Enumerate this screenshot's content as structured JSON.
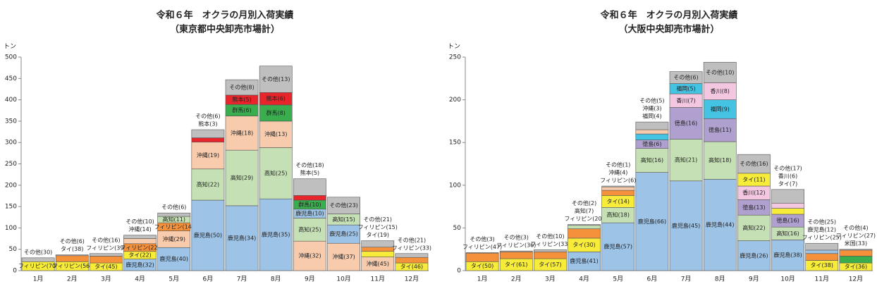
{
  "chart_data": [
    {
      "type": "bar",
      "stacked": true,
      "title": "令和６年　オクラの月別入荷実績",
      "subtitle": "（東京都中央卸売市場計）",
      "y_label": "トン",
      "categories": [
        "1月",
        "2月",
        "3月",
        "4月",
        "5月",
        "6月",
        "7月",
        "8月",
        "9月",
        "10月",
        "11月",
        "12月"
      ],
      "ylim": [
        0,
        500
      ],
      "yticks": [
        0,
        50,
        100,
        150,
        200,
        250,
        300,
        350,
        400,
        450,
        500
      ],
      "stacks": [
        [
          {
            "label": "フィリピン(70)",
            "value": 21,
            "color": "#f7ec3a"
          },
          {
            "label": "その他(30)",
            "value": 9,
            "color": "#bfbfbf",
            "outside": true
          }
        ],
        [
          {
            "label": "フィリピン(56)",
            "value": 21,
            "color": "#f7ec3a"
          },
          {
            "label": "タイ(38)",
            "value": 14,
            "color": "#f4913a",
            "outside": true
          },
          {
            "label": "その他(6)",
            "value": 2,
            "color": "#bfbfbf",
            "outside": true
          }
        ],
        [
          {
            "label": "タイ(45)",
            "value": 18,
            "color": "#f7ec3a"
          },
          {
            "label": "フィリピン(39)",
            "value": 16,
            "color": "#f4913a",
            "outside": true
          },
          {
            "label": "その他(16)",
            "value": 6,
            "color": "#bfbfbf",
            "outside": true
          }
        ],
        [
          {
            "label": "鹿児島(32)",
            "value": 27,
            "color": "#9dc3e6"
          },
          {
            "label": "タイ(22)",
            "value": 18,
            "color": "#f7ec3a"
          },
          {
            "label": "フィリピン(22)",
            "value": 18,
            "color": "#f4913a"
          },
          {
            "label": "沖縄(14)",
            "value": 12,
            "color": "#f8cbad",
            "outside": true
          },
          {
            "label": "その他(10)",
            "value": 8,
            "color": "#bfbfbf",
            "outside": true
          }
        ],
        [
          {
            "label": "鹿児島(40)",
            "value": 54,
            "color": "#9dc3e6"
          },
          {
            "label": "沖縄(29)",
            "value": 39,
            "color": "#f8cbad"
          },
          {
            "label": "フィリピン(14)",
            "value": 19,
            "color": "#f4913a"
          },
          {
            "label": "高知(11)",
            "value": 15,
            "color": "#c5e0b4"
          },
          {
            "label": "その他(6)",
            "value": 8,
            "color": "#bfbfbf",
            "outside": true
          }
        ],
        [
          {
            "label": "鹿児島(50)",
            "value": 165,
            "color": "#9dc3e6"
          },
          {
            "label": "高知(22)",
            "value": 73,
            "color": "#c5e0b4"
          },
          {
            "label": "沖縄(19)",
            "value": 63,
            "color": "#f8cbad"
          },
          {
            "label": "熊本(3)",
            "value": 10,
            "color": "#e8252b",
            "outside": true
          },
          {
            "label": "その他(6)",
            "value": 19,
            "color": "#bfbfbf",
            "outside": true
          }
        ],
        [
          {
            "label": "鹿児島(34)",
            "value": 152,
            "color": "#9dc3e6"
          },
          {
            "label": "高知(29)",
            "value": 130,
            "color": "#c5e0b4"
          },
          {
            "label": "沖縄(18)",
            "value": 80,
            "color": "#f8cbad"
          },
          {
            "label": "群馬(6)",
            "value": 27,
            "color": "#3aae4f"
          },
          {
            "label": "熊本(5)",
            "value": 22,
            "color": "#e8252b"
          },
          {
            "label": "その他(8)",
            "value": 36,
            "color": "#bfbfbf"
          }
        ],
        [
          {
            "label": "鹿児島(35)",
            "value": 168,
            "color": "#9dc3e6"
          },
          {
            "label": "高知(25)",
            "value": 120,
            "color": "#c5e0b4"
          },
          {
            "label": "沖縄(13)",
            "value": 62,
            "color": "#f8cbad"
          },
          {
            "label": "群馬(8)",
            "value": 38,
            "color": "#3aae4f"
          },
          {
            "label": "熊本(6)",
            "value": 29,
            "color": "#e8252b"
          },
          {
            "label": "その他(13)",
            "value": 62,
            "color": "#bfbfbf"
          }
        ],
        [
          {
            "label": "沖縄(32)",
            "value": 69,
            "color": "#f8cbad"
          },
          {
            "label": "高知(25)",
            "value": 54,
            "color": "#c5e0b4"
          },
          {
            "label": "鹿児島(10)",
            "value": 21,
            "color": "#9dc3e6"
          },
          {
            "label": "群馬(10)",
            "value": 21,
            "color": "#3aae4f"
          },
          {
            "label": "熊本(5)",
            "value": 11,
            "color": "#e8252b",
            "outside": true
          },
          {
            "label": "その他(18)",
            "value": 39,
            "color": "#bfbfbf",
            "outside": true
          }
        ],
        [
          {
            "label": "沖縄(37)",
            "value": 64,
            "color": "#f8cbad"
          },
          {
            "label": "鹿児島(25)",
            "value": 43,
            "color": "#9dc3e6"
          },
          {
            "label": "高知(15)",
            "value": 26,
            "color": "#c5e0b4"
          },
          {
            "label": "その他(23)",
            "value": 39,
            "color": "#bfbfbf"
          }
        ],
        [
          {
            "label": "沖縄(45)",
            "value": 32,
            "color": "#f8cbad"
          },
          {
            "label": "タイ(19)",
            "value": 13,
            "color": "#f7ec3a",
            "outside": true
          },
          {
            "label": "フィリピン(15)",
            "value": 10,
            "color": "#f4913a",
            "outside": true
          },
          {
            "label": "その他(21)",
            "value": 15,
            "color": "#bfbfbf",
            "outside": true
          }
        ],
        [
          {
            "label": "タイ(46)",
            "value": 18,
            "color": "#f7ec3a"
          },
          {
            "label": "フィリピン(33)",
            "value": 13,
            "color": "#f4913a",
            "outside": true
          },
          {
            "label": "その他(21)",
            "value": 9,
            "color": "#bfbfbf",
            "outside": true
          }
        ]
      ]
    },
    {
      "type": "bar",
      "stacked": true,
      "title": "令和６年　オクラの月別入荷実績",
      "subtitle": "（大阪中央卸売市場計）",
      "y_label": "トン",
      "categories": [
        "1月",
        "2月",
        "3月",
        "4月",
        "5月",
        "6月",
        "7月",
        "8月",
        "9月",
        "10月",
        "11月",
        "12月"
      ],
      "ylim": [
        0,
        250
      ],
      "yticks": [
        0,
        50,
        100,
        150,
        200,
        250
      ],
      "stacks": [
        [
          {
            "label": "タイ(50)",
            "value": 10.5,
            "color": "#f7ec3a"
          },
          {
            "label": "フィリピン(47)",
            "value": 10,
            "color": "#f4913a",
            "outside": true
          },
          {
            "label": "その他(3)",
            "value": 0.5,
            "color": "#bfbfbf",
            "outside": true
          }
        ],
        [
          {
            "label": "タイ(61)",
            "value": 14,
            "color": "#f7ec3a"
          },
          {
            "label": "フィリピン(36)",
            "value": 8,
            "color": "#f4913a",
            "outside": true
          },
          {
            "label": "その他(3)",
            "value": 1,
            "color": "#bfbfbf",
            "outside": true
          }
        ],
        [
          {
            "label": "タイ(57)",
            "value": 14,
            "color": "#f7ec3a"
          },
          {
            "label": "フィリピン(33)",
            "value": 8,
            "color": "#f4913a",
            "outside": true
          },
          {
            "label": "その他(10)",
            "value": 2.5,
            "color": "#bfbfbf",
            "outside": true
          }
        ],
        [
          {
            "label": "鹿児島(41)",
            "value": 22,
            "color": "#9dc3e6"
          },
          {
            "label": "タイ(30)",
            "value": 16,
            "color": "#f7ec3a"
          },
          {
            "label": "フィリピン(20)",
            "value": 11,
            "color": "#f4913a",
            "outside": true
          },
          {
            "label": "高知(7)",
            "value": 4,
            "color": "#c5e0b4",
            "outside": true
          },
          {
            "label": "その他(2)",
            "value": 1,
            "color": "#bfbfbf",
            "outside": true
          }
        ],
        [
          {
            "label": "鹿児島(57)",
            "value": 56,
            "color": "#9dc3e6"
          },
          {
            "label": "高知(18)",
            "value": 18,
            "color": "#c5e0b4"
          },
          {
            "label": "タイ(14)",
            "value": 14,
            "color": "#f7ec3a"
          },
          {
            "label": "フィリピン(6)",
            "value": 6,
            "color": "#f4913a",
            "outside": true
          },
          {
            "label": "沖縄(4)",
            "value": 4,
            "color": "#f8cbad",
            "outside": true
          },
          {
            "label": "その他(1)",
            "value": 1,
            "color": "#bfbfbf",
            "outside": true
          }
        ],
        [
          {
            "label": "鹿児島(66)",
            "value": 115,
            "color": "#9dc3e6"
          },
          {
            "label": "高知(16)",
            "value": 28,
            "color": "#c5e0b4"
          },
          {
            "label": "徳島(6)",
            "value": 10,
            "color": "#b0a0d0"
          },
          {
            "label": "福岡(4)",
            "value": 7,
            "color": "#45c3e3",
            "outside": true
          },
          {
            "label": "沖縄(3)",
            "value": 5,
            "color": "#f8cbad",
            "outside": true
          },
          {
            "label": "その他(5)",
            "value": 9,
            "color": "#bfbfbf",
            "outside": true
          }
        ],
        [
          {
            "label": "鹿児島(45)",
            "value": 105,
            "color": "#9dc3e6"
          },
          {
            "label": "高知(21)",
            "value": 49,
            "color": "#c5e0b4"
          },
          {
            "label": "徳島(16)",
            "value": 37,
            "color": "#b0a0d0"
          },
          {
            "label": "香川(7)",
            "value": 16,
            "color": "#f4c7e0"
          },
          {
            "label": "福岡(5)",
            "value": 12,
            "color": "#45c3e3"
          },
          {
            "label": "その他(6)",
            "value": 14,
            "color": "#bfbfbf"
          }
        ],
        [
          {
            "label": "鹿児島(44)",
            "value": 107,
            "color": "#9dc3e6"
          },
          {
            "label": "高知(18)",
            "value": 44,
            "color": "#c5e0b4"
          },
          {
            "label": "徳島(11)",
            "value": 27,
            "color": "#b0a0d0"
          },
          {
            "label": "福岡(9)",
            "value": 22,
            "color": "#45c3e3"
          },
          {
            "label": "香川(8)",
            "value": 20,
            "color": "#f4c7e0"
          },
          {
            "label": "その他(10)",
            "value": 24,
            "color": "#bfbfbf"
          }
        ],
        [
          {
            "label": "鹿児島(26)",
            "value": 35,
            "color": "#9dc3e6"
          },
          {
            "label": "高知(22)",
            "value": 30,
            "color": "#c5e0b4"
          },
          {
            "label": "徳島(13)",
            "value": 18,
            "color": "#b0a0d0"
          },
          {
            "label": "香川(12)",
            "value": 16,
            "color": "#f4c7e0"
          },
          {
            "label": "タイ(11)",
            "value": 15,
            "color": "#f7ec3a"
          },
          {
            "label": "その他(16)",
            "value": 22,
            "color": "#bfbfbf"
          }
        ],
        [
          {
            "label": "鹿児島(38)",
            "value": 36,
            "color": "#9dc3e6"
          },
          {
            "label": "高知(16)",
            "value": 15,
            "color": "#c5e0b4"
          },
          {
            "label": "徳島(16)",
            "value": 15,
            "color": "#b0a0d0"
          },
          {
            "label": "タイ(7)",
            "value": 7,
            "color": "#f7ec3a",
            "outside": true
          },
          {
            "label": "香川(6)",
            "value": 6,
            "color": "#f4c7e0",
            "outside": true
          },
          {
            "label": "その他(17)",
            "value": 16,
            "color": "#bfbfbf",
            "outside": true
          }
        ],
        [
          {
            "label": "タイ(38)",
            "value": 12,
            "color": "#f7ec3a"
          },
          {
            "label": "フィリピン(25)",
            "value": 8,
            "color": "#f4913a",
            "outside": true
          },
          {
            "label": "鹿児島(12)",
            "value": 4,
            "color": "#9dc3e6",
            "outside": true
          },
          {
            "label": "その他(25)",
            "value": 8,
            "color": "#bfbfbf",
            "outside": true
          }
        ],
        [
          {
            "label": "タイ(36)",
            "value": 9,
            "color": "#f7ec3a"
          },
          {
            "label": "米国(33)",
            "value": 8,
            "color": "#3aae4f",
            "outside": true
          },
          {
            "label": "フィリピン(27)",
            "value": 7,
            "color": "#f4913a",
            "outside": true
          },
          {
            "label": "その他(4)",
            "value": 1,
            "color": "#bfbfbf",
            "outside": true
          }
        ]
      ]
    }
  ]
}
